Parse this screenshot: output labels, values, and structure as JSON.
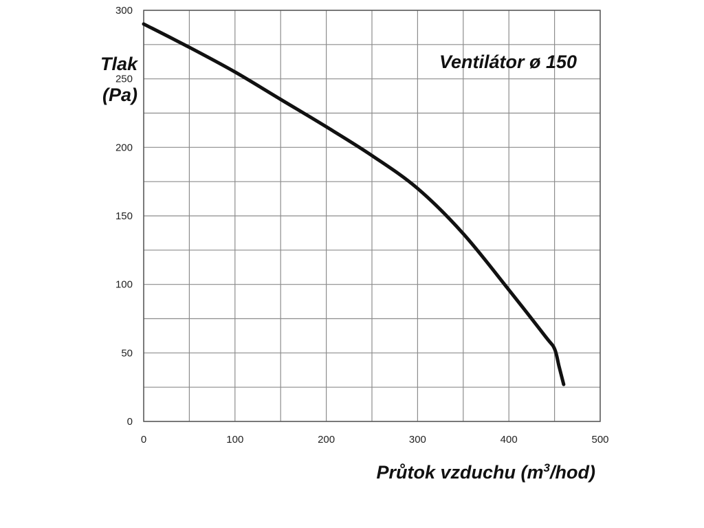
{
  "chart_data": {
    "type": "line",
    "title": "Ventilátor ø 150",
    "ylabel_line1": "Tlak",
    "ylabel_line2": "(Pa)",
    "xlabel_main": "Průtok vzduchu (m",
    "xlabel_sup": "3",
    "xlabel_end": "/hod)",
    "xlim": [
      0,
      500
    ],
    "ylim": [
      0,
      300
    ],
    "x_major_ticks": [
      0,
      100,
      200,
      300,
      400,
      500
    ],
    "y_major_ticks": [
      0,
      50,
      100,
      150,
      200,
      250,
      300
    ],
    "x_minor_step": 50,
    "y_minor_step": 25,
    "grid": true,
    "line_color": "#111111",
    "grid_color": "#8c8c8c",
    "series": [
      {
        "x": [
          0,
          50,
          100,
          150,
          200,
          250,
          300,
          350,
          400,
          440,
          450,
          455,
          460
        ],
        "y": [
          290,
          273,
          255,
          235,
          215,
          194,
          170,
          137,
          96,
          62,
          53,
          40,
          27
        ]
      }
    ]
  }
}
